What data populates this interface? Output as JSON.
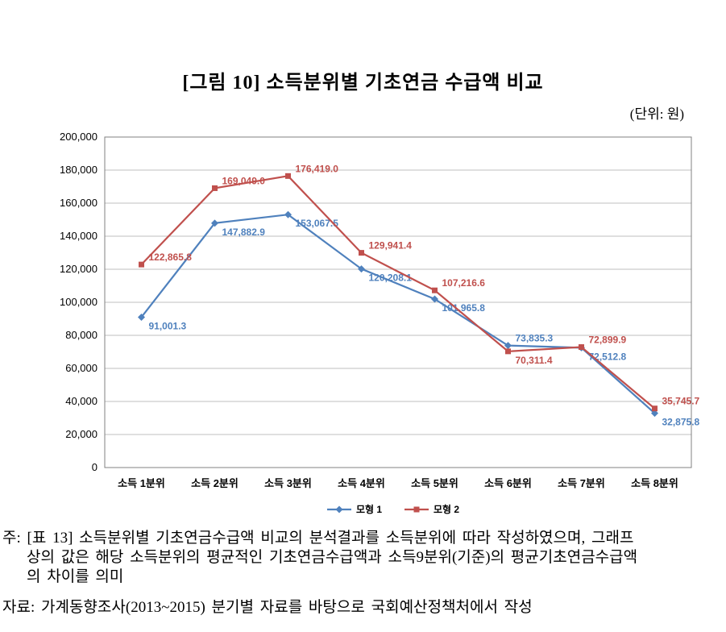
{
  "figure_title": "[그림 10] 소득분위별 기초연금 수급액 비교",
  "unit_label": "(단위: 원)",
  "chart_data": {
    "type": "line",
    "title": "[그림 10] 소득분위별 기초연금 수급액 비교",
    "unit": "원",
    "categories": [
      "소득 1분위",
      "소득 2분위",
      "소득 3분위",
      "소득 4분위",
      "소득 5분위",
      "소득 6분위",
      "소득 7분위",
      "소득 8분위"
    ],
    "series": [
      {
        "name": "모형 1",
        "color": "#4F81BD",
        "marker": "diamond",
        "values": [
          91001.3,
          147882.9,
          153067.5,
          120208.1,
          101965.8,
          73835.3,
          72512.8,
          32875.8
        ]
      },
      {
        "name": "모형 2",
        "color": "#C0504D",
        "marker": "square",
        "values": [
          122865.8,
          169049.0,
          176419.0,
          129941.4,
          107216.6,
          70311.4,
          72899.9,
          35745.7
        ]
      }
    ],
    "ylim": [
      0,
      200000
    ],
    "ytick_step": 20000,
    "yticks": [
      0,
      20000,
      40000,
      60000,
      80000,
      100000,
      120000,
      140000,
      160000,
      180000,
      200000
    ],
    "grid": true,
    "legend_position": "bottom",
    "colors": {
      "grid": "#bfbfbf",
      "axis": "#808080",
      "text": "#000000"
    }
  },
  "footnotes": {
    "note_lines": [
      "주: [표 13] 소득분위별 기초연금수급액 비교의 분석결과를 소득분위에 따라 작성하였으며, 그래프",
      "상의 값은 해당 소득분위의 평균적인 기초연금수급액과 소득9분위(기준)의 평균기초연금수급액",
      "의 차이를 의미"
    ],
    "source": "자료: 가계동향조사(2013~2015) 분기별 자료를 바탕으로 국회예산정책처에서 작성"
  }
}
